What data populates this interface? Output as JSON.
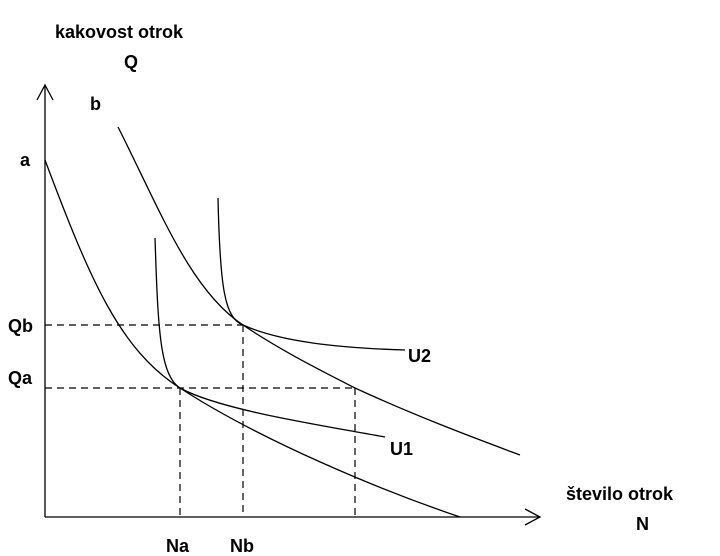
{
  "axes": {
    "y_label": "kakovost otrok",
    "y_symbol": "Q",
    "x_label": "število otrok",
    "x_symbol": "N"
  },
  "curves": {
    "a": "a",
    "b": "b",
    "u1": "U1",
    "u2": "U2"
  },
  "levels": {
    "qa": "Qa",
    "qb": "Qb",
    "na": "Na",
    "nb": "Nb"
  }
}
